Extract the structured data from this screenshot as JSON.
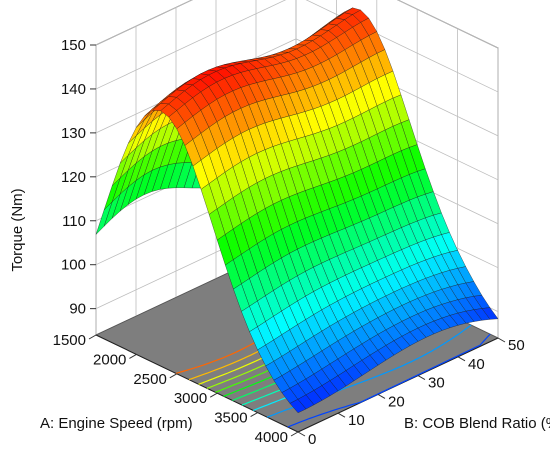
{
  "chart_data": {
    "type": "surface3d",
    "x_axis": {
      "label": "A: Engine Speed (rpm)",
      "range": [
        1500,
        4000
      ],
      "ticks": [
        1500,
        2000,
        2500,
        3000,
        3500,
        4000
      ]
    },
    "y_axis": {
      "label": "B: COB Blend Ratio (%)",
      "range": [
        0,
        50
      ],
      "ticks": [
        0,
        10,
        20,
        30,
        40,
        50
      ]
    },
    "z_axis": {
      "label": "Torque (Nm)",
      "range": [
        84,
        150
      ],
      "ticks": [
        90,
        100,
        110,
        120,
        130,
        140,
        150
      ]
    },
    "grid_points": {
      "speed": 26,
      "blend": 26
    },
    "surface_description": "Torque peaks near 2200–2500 rpm (~140–147 Nm), falls toward 4000 rpm (~86–100 Nm); slight rise with blend ratio at higher speeds",
    "colormap": [
      "#0000ff",
      "#00ffff",
      "#00ff00",
      "#ffff00",
      "#ff0000"
    ],
    "contours_on_floor": true
  }
}
